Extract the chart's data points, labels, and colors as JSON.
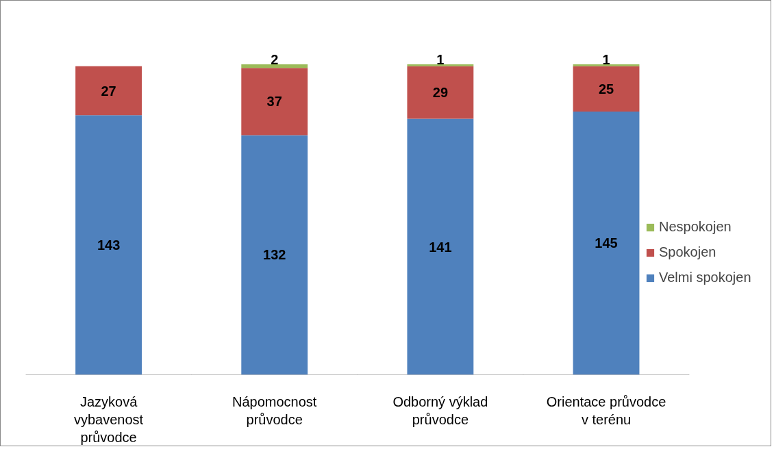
{
  "chart_data": {
    "type": "bar",
    "stacked": true,
    "categories": [
      "Jazyková vybavenost průvodce",
      "Nápomocnost průvodce",
      "Odborný výklad průvodce",
      "Orientace průvodce v terénu"
    ],
    "series": [
      {
        "name": "Velmi spokojen",
        "color": "#4f81bd",
        "values": [
          143,
          132,
          141,
          145
        ]
      },
      {
        "name": "Spokojen",
        "color": "#c0504d",
        "values": [
          27,
          37,
          29,
          25
        ]
      },
      {
        "name": "Nespokojen",
        "color": "#9bbb59",
        "values": [
          null,
          2,
          1,
          1
        ]
      }
    ],
    "data_labels": true,
    "legend": "right",
    "grid": false,
    "tick_labels": "x"
  }
}
